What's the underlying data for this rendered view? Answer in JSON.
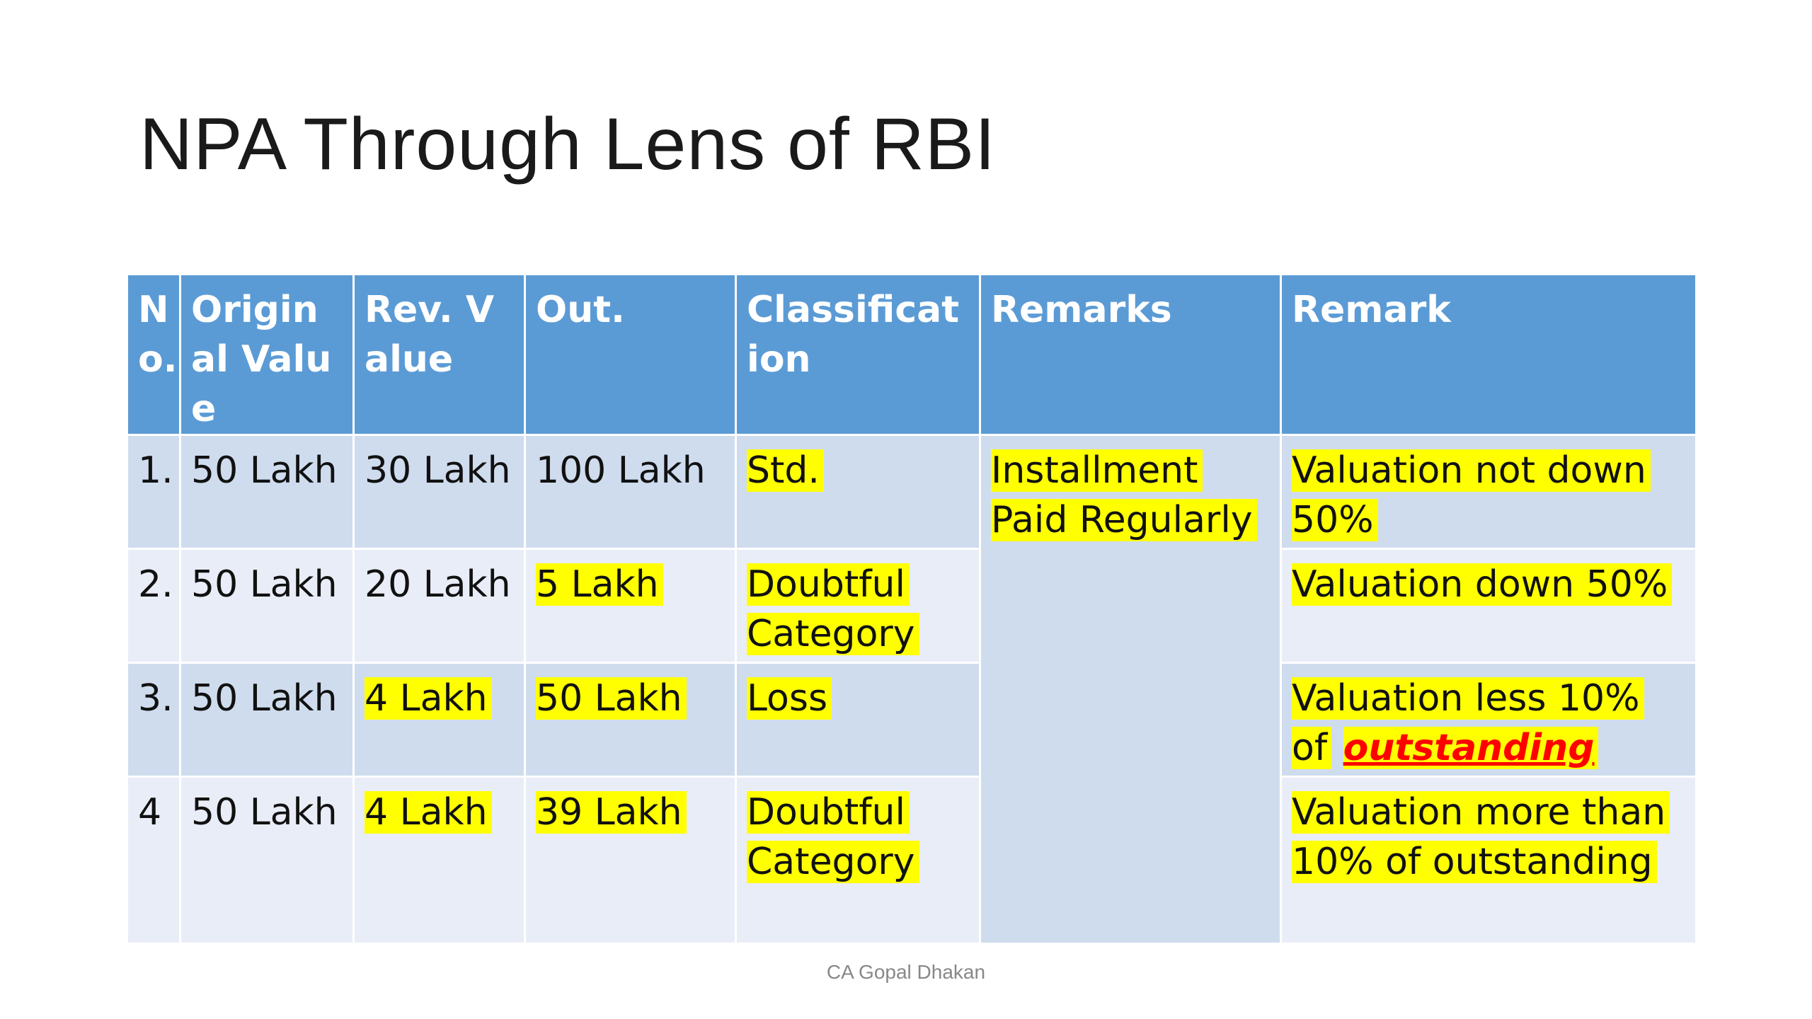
{
  "slide": {
    "title": "NPA Through Lens of RBI",
    "footer": "CA Gopal Dhakan"
  },
  "table": {
    "headers": [
      "No.",
      "Original Value",
      "Rev. Value",
      "Out.",
      "Classification",
      "Remarks",
      "Remark"
    ],
    "merged_remarks": "Installment Paid Regularly",
    "rows": [
      {
        "no": "1.",
        "original": "50 Lakh",
        "revised": "30 Lakh",
        "outstanding": "100 Lakh",
        "classification": "Std.",
        "remark": "Valuation not down 50%"
      },
      {
        "no": "2.",
        "original": "50 Lakh",
        "revised": "20 Lakh",
        "outstanding": "5 Lakh",
        "classification": "Doubtful Category",
        "remark": "Valuation down 50%"
      },
      {
        "no": "3.",
        "original": "50 Lakh",
        "revised": "4 Lakh",
        "outstanding": "50 Lakh",
        "classification": "Loss",
        "remark_prefix": "Valuation less 10% of",
        "remark_emphasis": "outstanding"
      },
      {
        "no": "4",
        "original": "50 Lakh",
        "revised": "4 Lakh",
        "outstanding": "39 Lakh",
        "classification": "Doubtful Category",
        "remark": "Valuation more than 10% of outstanding"
      }
    ]
  },
  "colors": {
    "header_bg": "#5b9bd5",
    "row_band_dark": "#cfdcee",
    "row_band_light": "#e9edf7",
    "highlight": "#ffff00",
    "emphasis": "#ff0000"
  }
}
